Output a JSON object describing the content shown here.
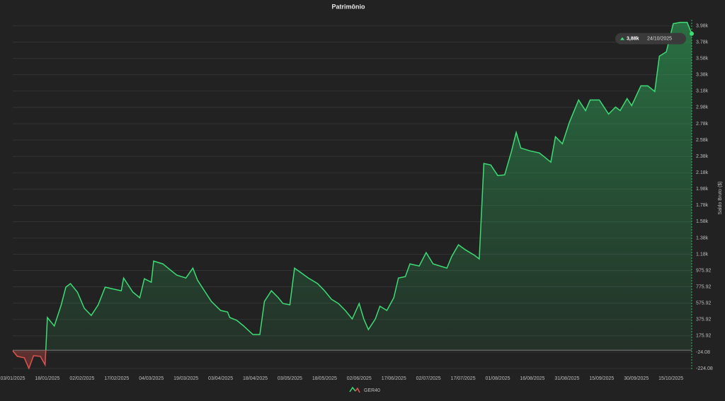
{
  "chart_data": {
    "type": "line",
    "title": "Patrimônio",
    "y_label": "Saldo Bruto ($)",
    "x": [
      "03/01/2025",
      "05/01/2025",
      "08/01/2025",
      "10/01/2025",
      "12/01/2025",
      "15/01/2025",
      "17/01/2025",
      "18/01/2025",
      "21/01/2025",
      "24/01/2025",
      "26/01/2025",
      "28/01/2025",
      "31/01/2025",
      "03/02/2025",
      "06/02/2025",
      "09/02/2025",
      "12/02/2025",
      "16/02/2025",
      "19/02/2025",
      "20/02/2025",
      "24/02/2025",
      "27/02/2025",
      "01/03/2025",
      "04/03/2025",
      "05/03/2025",
      "09/03/2025",
      "12/03/2025",
      "15/03/2025",
      "19/03/2025",
      "22/03/2025",
      "24/03/2025",
      "27/03/2025",
      "30/03/2025",
      "03/04/2025",
      "06/04/2025",
      "07/04/2025",
      "10/04/2025",
      "13/04/2025",
      "17/04/2025",
      "20/04/2025",
      "22/04/2025",
      "25/04/2025",
      "28/04/2025",
      "30/04/2025",
      "03/05/2025",
      "05/05/2025",
      "08/05/2025",
      "11/05/2025",
      "15/05/2025",
      "18/05/2025",
      "21/05/2025",
      "24/05/2025",
      "27/05/2025",
      "30/05/2025",
      "02/06/2025",
      "04/06/2025",
      "06/06/2025",
      "09/06/2025",
      "11/06/2025",
      "14/06/2025",
      "17/06/2025",
      "19/06/2025",
      "22/06/2025",
      "24/06/2025",
      "28/06/2025",
      "01/07/2025",
      "04/07/2025",
      "07/07/2025",
      "10/07/2025",
      "12/07/2025",
      "15/07/2025",
      "18/07/2025",
      "22/07/2025",
      "24/07/2025",
      "26/07/2025",
      "29/07/2025",
      "01/08/2025",
      "04/08/2025",
      "07/08/2025",
      "09/08/2025",
      "11/08/2025",
      "15/08/2025",
      "19/08/2025",
      "21/08/2025",
      "24/08/2025",
      "26/08/2025",
      "29/08/2025",
      "01/09/2025",
      "05/09/2025",
      "08/09/2025",
      "10/09/2025",
      "14/09/2025",
      "18/09/2025",
      "21/09/2025",
      "23/09/2025",
      "26/09/2025",
      "28/09/2025",
      "02/10/2025",
      "05/10/2025",
      "08/10/2025",
      "10/10/2025",
      "13/10/2025",
      "16/10/2025",
      "19/10/2025",
      "22/10/2025",
      "24/10/2025"
    ],
    "series": [
      {
        "name": "GER40",
        "color": "#3ddc74",
        "negative_color": "#e0524f",
        "values": [
          -7,
          -76,
          -93,
          -223,
          -67,
          -76,
          -180,
          400,
          296,
          556,
          773,
          816,
          712,
          513,
          426,
          556,
          773,
          747,
          729,
          885,
          712,
          643,
          876,
          833,
          1093,
          1058,
          989,
          920,
          885,
          1006,
          859,
          729,
          599,
          487,
          469,
          400,
          366,
          296,
          192,
          192,
          599,
          729,
          643,
          573,
          556,
          1006,
          946,
          885,
          816,
          729,
          625,
          573,
          487,
          383,
          573,
          383,
          253,
          383,
          539,
          487,
          643,
          885,
          902,
          1058,
          1032,
          1197,
          1058,
          1032,
          1006,
          1145,
          1292,
          1231,
          1162,
          1119,
          2288,
          2270,
          2141,
          2149,
          2444,
          2669,
          2478,
          2444,
          2418,
          2374,
          2305,
          2617,
          2530,
          2790,
          3067,
          2937,
          3067,
          3067,
          2894,
          2980,
          2937,
          3084,
          2998,
          3240,
          3240,
          3171,
          3604,
          3656,
          4002,
          4019,
          4019,
          3880
        ]
      }
    ],
    "xlim": [
      "03/01/2025",
      "24/10/2025"
    ],
    "xticks": [
      "03/01/2025",
      "18/01/2025",
      "02/02/2025",
      "17/02/2025",
      "04/03/2025",
      "19/03/2025",
      "03/04/2025",
      "18/04/2025",
      "03/05/2025",
      "18/05/2025",
      "02/06/2025",
      "17/06/2025",
      "02/07/2025",
      "17/07/2025",
      "01/08/2025",
      "16/08/2025",
      "31/08/2025",
      "15/09/2025",
      "30/09/2025",
      "15/10/2025"
    ],
    "ylim": [
      -250,
      4050
    ],
    "yticks": [
      -224.08,
      -24.08,
      175.92,
      375.92,
      575.92,
      775.92,
      975.92,
      {
        "value": 1175.92,
        "label": "1.18k"
      },
      {
        "value": 1375.92,
        "label": "1.38k"
      },
      {
        "value": 1575.92,
        "label": "1.58k"
      },
      {
        "value": 1775.92,
        "label": "1.78k"
      },
      {
        "value": 1975.92,
        "label": "1.98k"
      },
      {
        "value": 2175.92,
        "label": "2.18k"
      },
      {
        "value": 2375.92,
        "label": "2.38k"
      },
      {
        "value": 2575.92,
        "label": "2.58k"
      },
      {
        "value": 2775.92,
        "label": "2.78k"
      },
      {
        "value": 2975.92,
        "label": "2.98k"
      },
      {
        "value": 3175.92,
        "label": "3.18k"
      },
      {
        "value": 3375.92,
        "label": "3.38k"
      },
      {
        "value": 3575.92,
        "label": "3.58k"
      },
      {
        "value": 3775.92,
        "label": "3.78k"
      },
      {
        "value": 3975.92,
        "label": "3.98k"
      }
    ],
    "grid": true,
    "tooltip": {
      "label": "3,88k",
      "date": "24/10/2025"
    }
  }
}
